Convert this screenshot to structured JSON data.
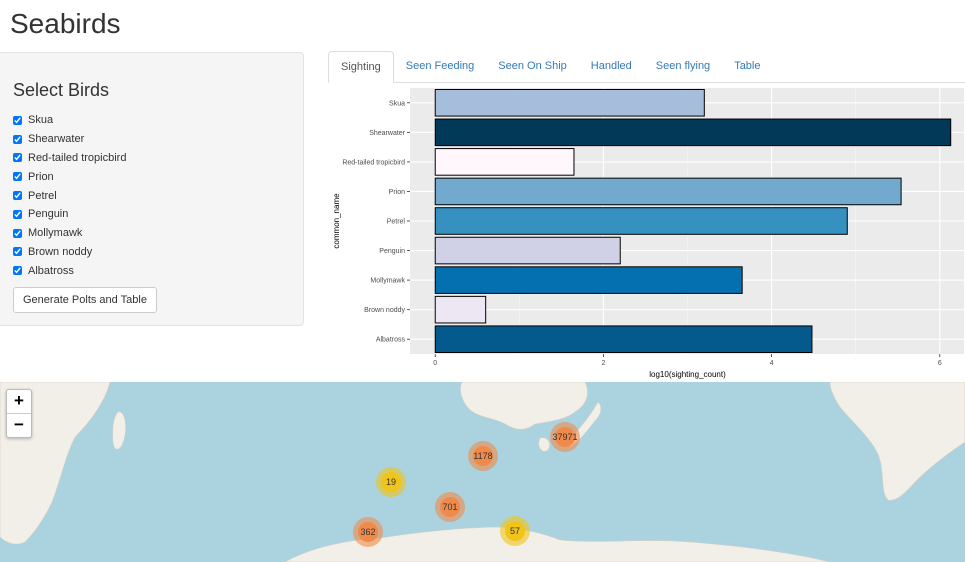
{
  "app": {
    "title": "Seabirds"
  },
  "sidebar": {
    "title": "Select Birds",
    "birds": [
      {
        "label": "Skua",
        "checked": true
      },
      {
        "label": "Shearwater",
        "checked": true
      },
      {
        "label": "Red-tailed tropicbird",
        "checked": true
      },
      {
        "label": "Prion",
        "checked": true
      },
      {
        "label": "Petrel",
        "checked": true
      },
      {
        "label": "Penguin",
        "checked": true
      },
      {
        "label": "Mollymawk",
        "checked": true
      },
      {
        "label": "Brown noddy",
        "checked": true
      },
      {
        "label": "Albatross",
        "checked": true
      }
    ],
    "generate_label": "Generate Polts and Table"
  },
  "tabs": [
    {
      "label": "Sighting",
      "active": true
    },
    {
      "label": "Seen Feeding",
      "active": false
    },
    {
      "label": "Seen On Ship",
      "active": false
    },
    {
      "label": "Handled",
      "active": false
    },
    {
      "label": "Seen flying",
      "active": false
    },
    {
      "label": "Table",
      "active": false
    }
  ],
  "chart_data": {
    "type": "bar",
    "orientation": "horizontal",
    "xlabel": "log10(sighting_count)",
    "ylabel": "common_name",
    "xlim": [
      -0.3,
      6.3
    ],
    "xticks": [
      0,
      2,
      4,
      6
    ],
    "grid": true,
    "categories": [
      "Skua",
      "Shearwater",
      "Red-tailed tropicbird",
      "Prion",
      "Petrel",
      "Penguin",
      "Mollymawk",
      "Brown noddy",
      "Albatross"
    ],
    "values": [
      3.2,
      6.13,
      1.65,
      5.54,
      4.9,
      2.2,
      3.65,
      0.6,
      4.48
    ],
    "colors": [
      "#a6bddb",
      "#023858",
      "#fff7fb",
      "#74a9cf",
      "#3690c0",
      "#d0d1e6",
      "#0570b0",
      "#ece7f2",
      "#045a8d"
    ]
  },
  "map": {
    "zoom_in_label": "+",
    "zoom_out_label": "−",
    "clusters": [
      {
        "count": "37971",
        "level": "medium"
      },
      {
        "count": "1178",
        "level": "medium"
      },
      {
        "count": "19",
        "level": "small"
      },
      {
        "count": "701",
        "level": "medium"
      },
      {
        "count": "362",
        "level": "medium"
      },
      {
        "count": "57",
        "level": "small"
      }
    ],
    "colors": {
      "water": "#aad3df",
      "land": "#f2efe9",
      "cluster_small": "#f0c419",
      "cluster_medium": "#f08a4b"
    }
  }
}
